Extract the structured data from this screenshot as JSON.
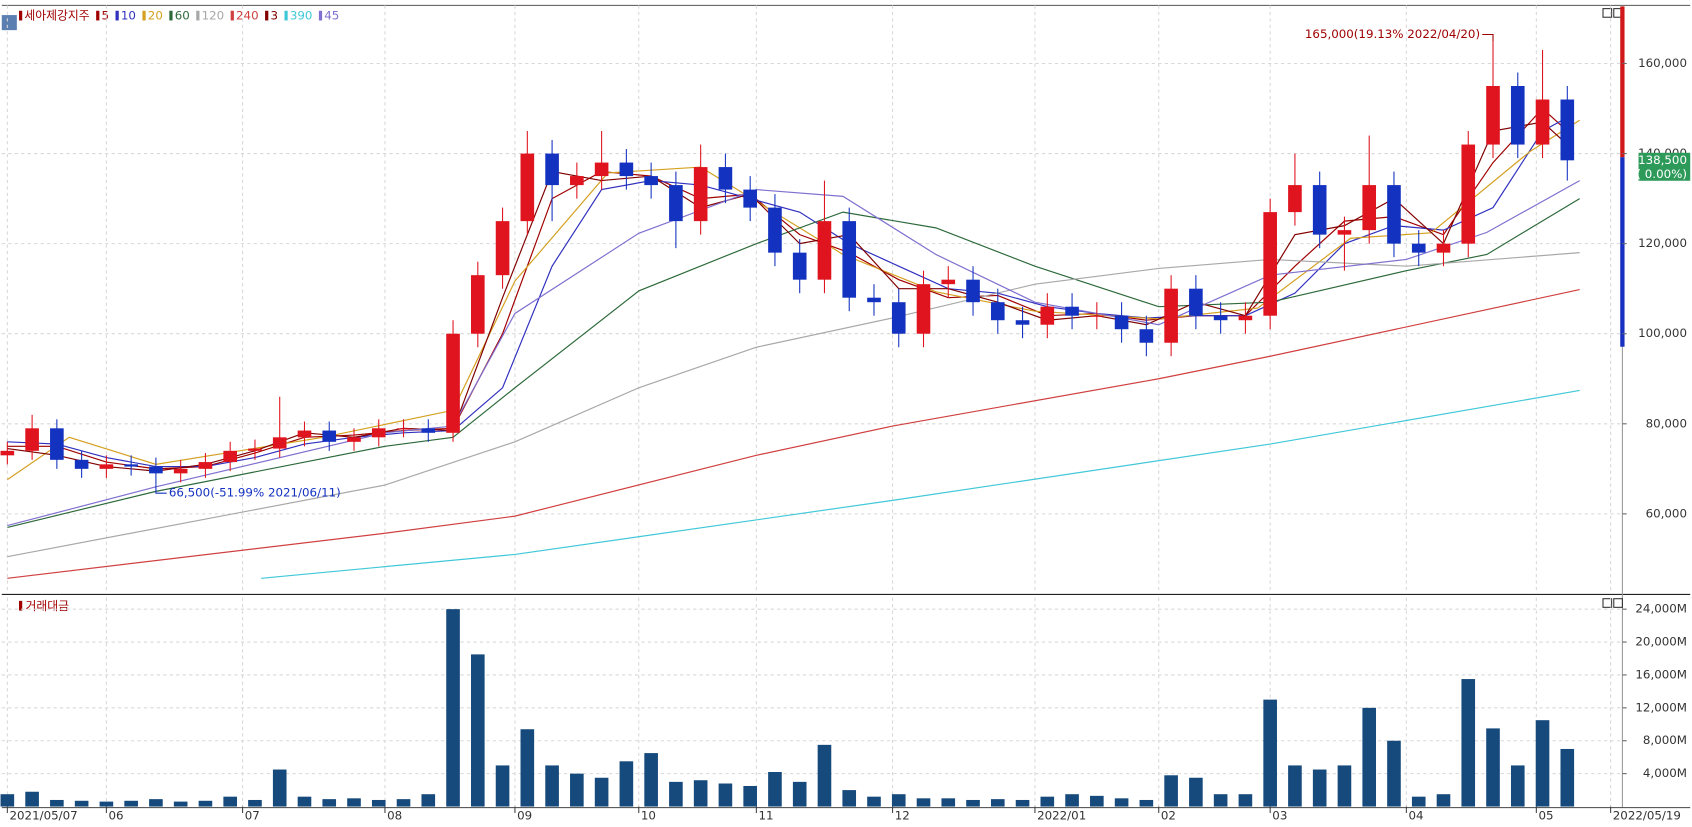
{
  "chart_data": [
    {
      "type": "candlestick",
      "name": "세아제강지주",
      "x": [
        0,
        4,
        8,
        12,
        16,
        20,
        24,
        28,
        32,
        36,
        40,
        44,
        48,
        52,
        56,
        60,
        64,
        68,
        72,
        76,
        80,
        84,
        88,
        92,
        96,
        100,
        104,
        108,
        112,
        116,
        120,
        124,
        128,
        132,
        136,
        140,
        144,
        148,
        152,
        156,
        160,
        164,
        168,
        172,
        176,
        180,
        184,
        188,
        192,
        196,
        200,
        204,
        208,
        212,
        216,
        220,
        224,
        228,
        232,
        236,
        240,
        244,
        248,
        252
      ],
      "open": [
        73000,
        74000,
        79000,
        72000,
        70000,
        71000,
        70500,
        69000,
        70000,
        71500,
        74000,
        74500,
        77000,
        78500,
        76000,
        77000,
        79000,
        79000,
        78000,
        100000,
        113000,
        125000,
        140000,
        133000,
        135000,
        138000,
        135000,
        133000,
        125000,
        137000,
        132000,
        128000,
        118000,
        112000,
        125000,
        108000,
        107000,
        100000,
        111000,
        112000,
        107000,
        103000,
        102000,
        106000,
        104000,
        104000,
        101000,
        98000,
        110000,
        104000,
        103000,
        104000,
        127000,
        133000,
        122000,
        123000,
        133000,
        120000,
        118000,
        120000,
        142000,
        155000,
        142000,
        152000
      ],
      "high": [
        76000,
        82000,
        81000,
        74000,
        73000,
        73000,
        72500,
        72000,
        73500,
        76000,
        76500,
        86000,
        80500,
        80500,
        79000,
        81000,
        81000,
        81000,
        103000,
        116000,
        128000,
        145000,
        143000,
        138000,
        145000,
        141000,
        138000,
        136000,
        142000,
        140000,
        135000,
        131000,
        121000,
        134000,
        128000,
        111000,
        110000,
        114000,
        115000,
        115000,
        110000,
        106000,
        109000,
        109000,
        107000,
        107000,
        104000,
        113000,
        113000,
        107000,
        107000,
        130000,
        140000,
        136000,
        126000,
        144000,
        136000,
        123000,
        123000,
        145000,
        165000,
        158000,
        163000,
        155000
      ],
      "low": [
        71000,
        72000,
        70000,
        68000,
        68000,
        68500,
        66500,
        67000,
        68000,
        69500,
        72000,
        72500,
        75000,
        74000,
        74000,
        75000,
        77000,
        76000,
        76000,
        97000,
        110000,
        122000,
        125000,
        130000,
        132000,
        132000,
        130000,
        119000,
        122000,
        129000,
        125000,
        115000,
        109000,
        109000,
        105000,
        104000,
        97000,
        97000,
        108000,
        104000,
        100000,
        99000,
        99000,
        101000,
        101000,
        98000,
        95000,
        95000,
        101000,
        100000,
        100000,
        101000,
        124000,
        119000,
        114000,
        120000,
        117000,
        115000,
        115000,
        117000,
        139000,
        139000,
        139000,
        134000
      ],
      "close": [
        74000,
        79000,
        72000,
        70000,
        71000,
        70500,
        69000,
        70000,
        71500,
        74000,
        74500,
        77000,
        78500,
        76000,
        77000,
        79000,
        79000,
        78000,
        100000,
        113000,
        125000,
        140000,
        133000,
        135000,
        138000,
        135000,
        133000,
        125000,
        137000,
        132000,
        128000,
        118000,
        112000,
        125000,
        108000,
        107000,
        100000,
        111000,
        112000,
        107000,
        103000,
        102000,
        106000,
        104000,
        104000,
        101000,
        98000,
        110000,
        104000,
        103000,
        104000,
        127000,
        133000,
        122000,
        123000,
        133000,
        120000,
        118000,
        120000,
        142000,
        155000,
        142000,
        152000,
        138500
      ],
      "up_color": "#e0141e",
      "down_color": "#1432c0",
      "xlim": [
        -0.9,
        260.9
      ],
      "ylim": [
        42600,
        172900
      ],
      "yticks": [
        {
          "value": 60000,
          "label": "60,000"
        },
        {
          "value": 80000,
          "label": "80,000"
        },
        {
          "value": 100000,
          "label": "100,000"
        },
        {
          "value": 120000,
          "label": "120,000"
        },
        {
          "value": 140000,
          "label": "140,000"
        },
        {
          "value": 160000,
          "label": "160,000"
        }
      ],
      "grid": true,
      "series": [
        {
          "name": "5",
          "color": "#a00000",
          "x": [
            0,
            8,
            16,
            24,
            32,
            40,
            48,
            56,
            64,
            72,
            80,
            88,
            96,
            104,
            112,
            120,
            128,
            136,
            144,
            152,
            160,
            168,
            176,
            184,
            192,
            200,
            208,
            216,
            224,
            232,
            240,
            248,
            252
          ],
          "values": [
            75000,
            75000,
            71500,
            70000,
            70500,
            73500,
            77000,
            77500,
            78500,
            79000,
            100000,
            130000,
            136000,
            135000,
            130000,
            131000,
            122000,
            118000,
            112000,
            108000,
            108500,
            104000,
            104500,
            103000,
            104000,
            104000,
            115000,
            125000,
            126000,
            122000,
            138000,
            150000,
            145000
          ]
        },
        {
          "name": "10",
          "color": "#3030c0",
          "x": [
            0,
            8,
            16,
            24,
            32,
            40,
            48,
            56,
            64,
            72,
            80,
            88,
            96,
            104,
            112,
            120,
            128,
            136,
            144,
            152,
            160,
            168,
            176,
            184,
            192,
            200,
            208,
            216,
            224,
            232,
            240,
            248,
            252
          ],
          "values": [
            76000,
            75500,
            72500,
            70500,
            70500,
            72500,
            75500,
            77000,
            78000,
            78500,
            88000,
            115000,
            132000,
            134000,
            133000,
            130000,
            127000,
            120000,
            115000,
            110000,
            109000,
            106000,
            104500,
            103500,
            104000,
            104000,
            109000,
            120000,
            124000,
            123000,
            128000,
            145000,
            148000
          ]
        },
        {
          "name": "20",
          "color": "#d4a020",
          "x": [
            0,
            10,
            24,
            51,
            72,
            82,
            97,
            112,
            135,
            150,
            166,
            186,
            202,
            217,
            230,
            246,
            254
          ],
          "values": [
            67600,
            77000,
            71000,
            77000,
            83000,
            111700,
            135700,
            137000,
            117600,
            109300,
            105000,
            103300,
            105700,
            121200,
            122400,
            140500,
            147400
          ]
        },
        {
          "name": "60",
          "color": "#2d6a3a",
          "x": [
            0,
            24,
            61,
            72,
            82,
            102,
            121,
            135,
            150,
            166,
            186,
            204,
            226,
            239,
            254
          ],
          "values": [
            57000,
            65000,
            75000,
            77000,
            88000,
            109500,
            120000,
            127000,
            123500,
            115000,
            106000,
            107000,
            114000,
            117600,
            130000
          ]
        },
        {
          "name": "120",
          "color": "#a8a8a8",
          "x": [
            0,
            61,
            82,
            102,
            121,
            143,
            166,
            186,
            204,
            226,
            254
          ],
          "values": [
            50500,
            66400,
            76000,
            88000,
            97000,
            103500,
            111000,
            114500,
            116500,
            115000,
            118000
          ]
        },
        {
          "name": "240",
          "color": "#d04040",
          "x": [
            0,
            61,
            82,
            121,
            143,
            186,
            204,
            254
          ],
          "values": [
            45700,
            55700,
            59500,
            73000,
            79500,
            90000,
            95000,
            109800
          ]
        },
        {
          "name": "3",
          "color": "#800000",
          "x": [
            0,
            8,
            16,
            24,
            32,
            40,
            48,
            56,
            64,
            72,
            80,
            88,
            96,
            104,
            112,
            120,
            128,
            136,
            144,
            152,
            160,
            168,
            176,
            184,
            192,
            200,
            208,
            216,
            224,
            232,
            240,
            248,
            252
          ],
          "values": [
            74500,
            73000,
            70500,
            69500,
            71000,
            74000,
            78000,
            77000,
            79000,
            78500,
            108000,
            136000,
            134000,
            135000,
            128000,
            131000,
            120000,
            122000,
            110000,
            110000,
            107000,
            103000,
            104000,
            102000,
            107000,
            104000,
            122000,
            124000,
            130000,
            120000,
            145000,
            147000,
            142000
          ]
        },
        {
          "name": "390",
          "color": "#40c8d8",
          "x": [
            41,
            82,
            143,
            204,
            254
          ],
          "values": [
            45700,
            51000,
            63000,
            75500,
            87400
          ]
        },
        {
          "name": "45",
          "color": "#8070d0",
          "x": [
            0,
            24,
            61,
            72,
            82,
            102,
            121,
            135,
            150,
            166,
            186,
            204,
            226,
            239,
            254
          ],
          "values": [
            57400,
            66000,
            78000,
            79500,
            104500,
            122300,
            132000,
            130500,
            117600,
            107000,
            102000,
            113000,
            116500,
            122500,
            134000
          ]
        }
      ],
      "annotations": [
        "165,000(19.13% 2022/04/20)",
        "66,500(-51.99% 2021/06/11)"
      ],
      "price_tag": [
        "138,500",
        "( 0.00%)"
      ],
      "price_tag_color": "#2e9a5a"
    },
    {
      "type": "bar",
      "title": "거래대금",
      "color": "#164a7c",
      "values": [
        1500,
        1800,
        800,
        700,
        600,
        700,
        900,
        600,
        700,
        1200,
        800,
        4500,
        1200,
        900,
        1000,
        800,
        900,
        1500,
        24000,
        18500,
        5000,
        9400,
        5000,
        4000,
        3500,
        5500,
        6500,
        3000,
        3200,
        2800,
        2500,
        4200,
        3000,
        7500,
        2000,
        1200,
        1500,
        1000,
        1000,
        800,
        900,
        800,
        1200,
        1500,
        1300,
        1000,
        800,
        3800,
        3500,
        1500,
        1500,
        13000,
        5000,
        4500,
        5000,
        12000,
        8000,
        1200,
        1500,
        15500,
        9500,
        5000,
        10500,
        7000
      ],
      "xlim": [
        -0.9,
        260.9
      ],
      "ylim": [
        0,
        25400
      ],
      "yticks": [
        {
          "value": 4000,
          "label": "4,000M"
        },
        {
          "value": 8000,
          "label": "8,000M"
        },
        {
          "value": 12000,
          "label": "12,000M"
        },
        {
          "value": 16000,
          "label": "16,000M"
        },
        {
          "value": 20000,
          "label": "20,000M"
        },
        {
          "value": 24000,
          "label": "24,000M"
        }
      ],
      "xticks": [
        {
          "value": 0,
          "label": "2021/05/07"
        },
        {
          "value": 16,
          "label": "06"
        },
        {
          "value": 38,
          "label": "07"
        },
        {
          "value": 61,
          "label": "08"
        },
        {
          "value": 82,
          "label": "09"
        },
        {
          "value": 102,
          "label": "10"
        },
        {
          "value": 121,
          "label": "11"
        },
        {
          "value": 143,
          "label": "12"
        },
        {
          "value": 166,
          "label": "2022/01"
        },
        {
          "value": 186,
          "label": "02"
        },
        {
          "value": 204,
          "label": "03"
        },
        {
          "value": 226,
          "label": "04"
        },
        {
          "value": 247,
          "label": "05"
        },
        {
          "value": 259,
          "label": "2022/05/19"
        }
      ],
      "grid": true
    }
  ]
}
